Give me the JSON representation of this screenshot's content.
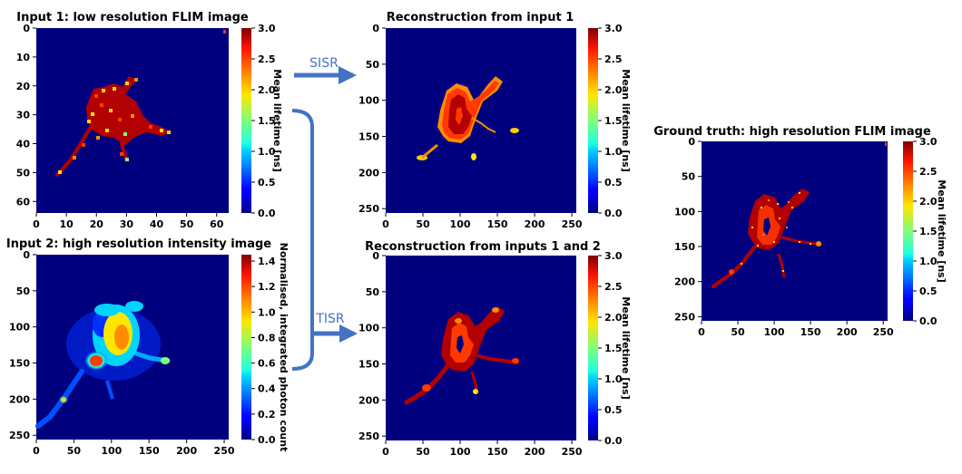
{
  "colors": {
    "background": "#00007f",
    "arrow": "#4472C4"
  },
  "colormap": "jet",
  "arrows": {
    "sisr_label": "SISR",
    "tisr_label": "TISR"
  },
  "chart_data": [
    {
      "type": "heatmap",
      "title": "Input 1: low resolution FLIM image",
      "xlim": [
        0,
        64
      ],
      "ylim": [
        64,
        0
      ],
      "xticks": [
        0,
        10,
        20,
        30,
        40,
        50,
        60
      ],
      "yticks": [
        0,
        10,
        20,
        30,
        40,
        50,
        60
      ],
      "colorbar": {
        "label": "Mean lifetime [ns]",
        "range": [
          0,
          3.0
        ],
        "ticks": [
          "0.0",
          "0.5",
          "1.0",
          "1.5",
          "2.0",
          "2.5",
          "3.0"
        ]
      }
    },
    {
      "type": "heatmap",
      "title": "Input 2: high resolution intensity image",
      "xlim": [
        0,
        256
      ],
      "ylim": [
        256,
        0
      ],
      "xticks": [
        0,
        50,
        100,
        150,
        200,
        250
      ],
      "yticks": [
        0,
        50,
        100,
        150,
        200,
        250
      ],
      "colorbar": {
        "label": "Normalised, integrated photon count",
        "range": [
          0,
          1.45
        ],
        "ticks": [
          "0.0",
          "0.2",
          "0.4",
          "0.6",
          "0.8",
          "1.0",
          "1.2",
          "1.4"
        ]
      }
    },
    {
      "type": "heatmap",
      "title": "Reconstruction from input 1",
      "xlim": [
        0,
        256
      ],
      "ylim": [
        256,
        0
      ],
      "xticks": [
        0,
        50,
        100,
        150,
        200,
        250
      ],
      "yticks": [
        0,
        50,
        100,
        150,
        200,
        250
      ],
      "colorbar": {
        "label": "Mean lifetime [ns]",
        "range": [
          0,
          3.0
        ],
        "ticks": [
          "0.0",
          "0.5",
          "1.0",
          "1.5",
          "2.0",
          "2.5",
          "3.0"
        ]
      }
    },
    {
      "type": "heatmap",
      "title": "Reconstruction from inputs 1 and 2",
      "xlim": [
        0,
        256
      ],
      "ylim": [
        256,
        0
      ],
      "xticks": [
        0,
        50,
        100,
        150,
        200,
        250
      ],
      "yticks": [
        0,
        50,
        100,
        150,
        200,
        250
      ],
      "colorbar": {
        "label": "Mean lifetime [ns]",
        "range": [
          0,
          3.0
        ],
        "ticks": [
          "0.0",
          "0.5",
          "1.0",
          "1.5",
          "2.0",
          "2.5",
          "3.0"
        ]
      }
    },
    {
      "type": "heatmap",
      "title": "Ground truth: high resolution FLIM image",
      "xlim": [
        0,
        256
      ],
      "ylim": [
        256,
        0
      ],
      "xticks": [
        0,
        50,
        100,
        150,
        200,
        250
      ],
      "yticks": [
        0,
        50,
        100,
        150,
        200,
        250
      ],
      "colorbar": {
        "label": "Mean lifetime [ns]",
        "range": [
          0,
          3.0
        ],
        "ticks": [
          "0.0",
          "0.5",
          "1.0",
          "1.5",
          "2.0",
          "2.5",
          "3.0"
        ]
      }
    }
  ]
}
